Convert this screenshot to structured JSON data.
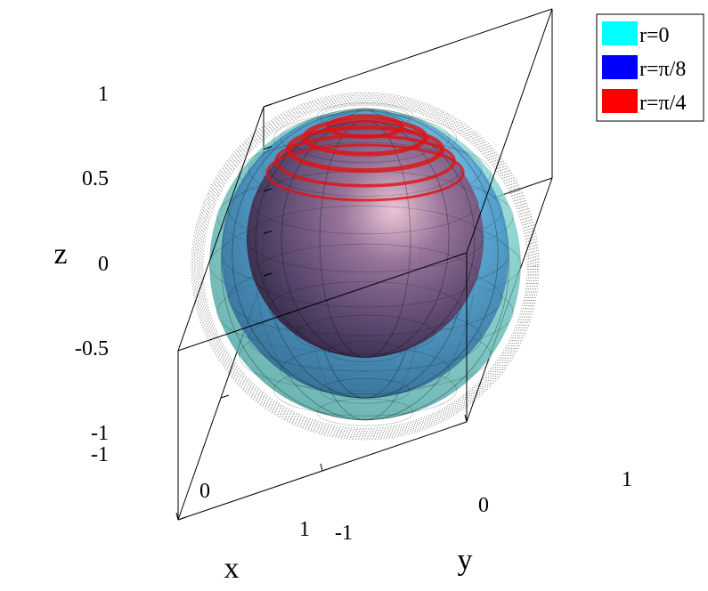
{
  "chart_data": {
    "type": "surface3d",
    "xlabel": "x",
    "ylabel": "y",
    "zlabel": "z",
    "xlim": [
      -1,
      1
    ],
    "ylim": [
      -1,
      1
    ],
    "zlim": [
      -1,
      1
    ],
    "x_ticks": [
      "-1",
      "0",
      "1"
    ],
    "y_ticks": [
      "-1",
      "0",
      "1"
    ],
    "z_ticks": [
      "1",
      "0.5",
      "0",
      "-0.5",
      "-1"
    ],
    "legend_position": "top-right",
    "reference_sphere": {
      "radius": 1,
      "style": "dotted"
    },
    "series": [
      {
        "name": "r=0",
        "color": "#00ffff",
        "center": [
          0,
          0,
          0
        ],
        "radius": 0.92
      },
      {
        "name": "r=π/8",
        "color": "#0000ff",
        "center": [
          0,
          0,
          0.12
        ],
        "radius": 0.85
      },
      {
        "name": "r=π/4",
        "color": "#ff0000",
        "center": [
          0,
          0,
          0.3
        ],
        "radius": 0.7
      }
    ]
  }
}
